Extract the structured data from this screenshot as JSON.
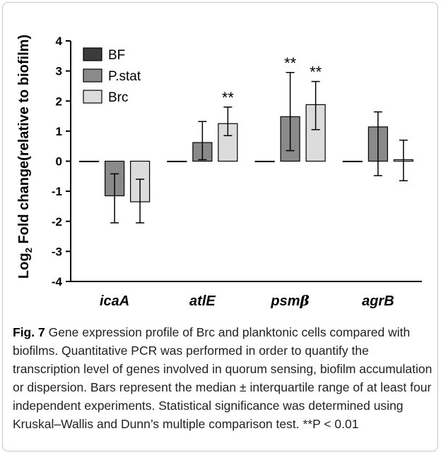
{
  "chart_data": {
    "type": "bar",
    "categories": [
      "icaA",
      "atlE",
      "psm",
      "agrB"
    ],
    "category_suffix": [
      "",
      "",
      "β",
      ""
    ],
    "ylabel_prefix": "Log",
    "ylabel_sub": "2",
    "ylabel_rest": " Fold change(relative to biofilm)",
    "ylim": [
      -4,
      4
    ],
    "yticks": [
      "4",
      "3",
      "2",
      "1",
      "0",
      "-1",
      "-2",
      "-3",
      "-4"
    ],
    "legend_position": "top-left",
    "series": [
      {
        "name": "BF",
        "color": "#3b3b3b",
        "values": [
          0,
          0,
          0,
          0
        ],
        "err_low": [
          0.1,
          0,
          0,
          0
        ],
        "err_high": [
          0.1,
          0,
          0,
          0
        ],
        "sig": [
          "",
          "",
          "",
          ""
        ]
      },
      {
        "name": "P.stat",
        "color": "#8a8a8a",
        "values": [
          -1.15,
          0.62,
          1.48,
          1.14
        ],
        "err_low": [
          -2.05,
          0.05,
          0.35,
          -0.48
        ],
        "err_high": [
          -0.42,
          1.32,
          2.95,
          1.64
        ],
        "sig": [
          "",
          "",
          "**",
          ""
        ]
      },
      {
        "name": "Brc",
        "color": "#dcdcdc",
        "values": [
          -1.35,
          1.25,
          1.88,
          0.05
        ],
        "err_low": [
          -2.05,
          0.85,
          1.05,
          -0.65
        ],
        "err_high": [
          -0.6,
          1.8,
          2.65,
          0.7
        ],
        "sig": [
          "",
          "**",
          "**",
          ""
        ]
      }
    ]
  },
  "caption": {
    "label": "Fig. 7",
    "text": "Gene expression profile of Brc and planktonic cells compared with biofilms. Quantitative PCR was performed in order to quantify the transcription level of genes involved in quorum sensing, biofilm accumulation or dispersion. Bars represent the median ± interquartile range of at least four independent experiments. Statistical significance was determined using Kruskal–Wallis and Dunn’s multiple comparison test. **P < 0.01"
  }
}
